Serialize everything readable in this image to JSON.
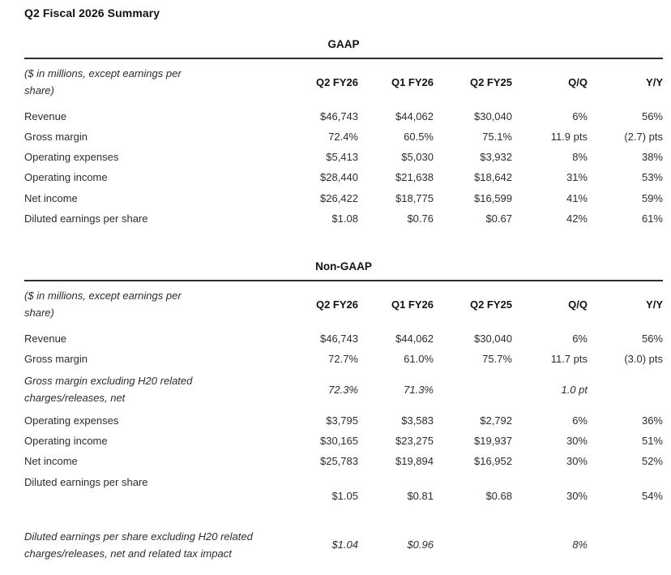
{
  "page": {
    "title": "Q2 Fiscal 2026 Summary"
  },
  "tables": {
    "gaap": {
      "section_label": "GAAP",
      "note": "($ in millions, except earnings per share)",
      "columns": [
        "Q2 FY26",
        "Q1 FY26",
        "Q2 FY25",
        "Q/Q",
        "Y/Y"
      ],
      "rows": [
        {
          "label": "Revenue",
          "values": [
            "$46,743",
            "$44,062",
            "$30,040",
            "6%",
            "56%"
          ]
        },
        {
          "label": "Gross margin",
          "values": [
            "72.4%",
            "60.5%",
            "75.1%",
            "11.9 pts",
            "(2.7) pts"
          ]
        },
        {
          "label": "Operating expenses",
          "values": [
            "$5,413",
            "$5,030",
            "$3,932",
            "8%",
            "38%"
          ]
        },
        {
          "label": "Operating income",
          "values": [
            "$28,440",
            "$21,638",
            "$18,642",
            "31%",
            "53%"
          ]
        },
        {
          "label": "Net income",
          "values": [
            "$26,422",
            "$18,775",
            "$16,599",
            "41%",
            "59%"
          ]
        },
        {
          "label": "Diluted earnings per share",
          "values": [
            "$1.08",
            "$0.76",
            "$0.67",
            "42%",
            "61%"
          ]
        }
      ]
    },
    "non_gaap": {
      "section_label": "Non-GAAP",
      "note": "($ in millions, except earnings per share)",
      "columns": [
        "Q2 FY26",
        "Q1 FY26",
        "Q2 FY25",
        "Q/Q",
        "Y/Y"
      ],
      "rows": [
        {
          "label": "Revenue",
          "values": [
            "$46,743",
            "$44,062",
            "$30,040",
            "6%",
            "56%"
          ]
        },
        {
          "label": "Gross margin",
          "values": [
            "72.7%",
            "61.0%",
            "75.7%",
            "11.7 pts",
            "(3.0) pts"
          ]
        },
        {
          "label": "Gross margin excluding H20 related charges/releases, net",
          "values": [
            "72.3%",
            "71.3%",
            "",
            "1.0 pt",
            ""
          ]
        },
        {
          "label": "Operating expenses",
          "values": [
            "$3,795",
            "$3,583",
            "$2,792",
            "6%",
            "36%"
          ]
        },
        {
          "label": "Operating income",
          "values": [
            "$30,165",
            "$23,275",
            "$19,937",
            "30%",
            "51%"
          ]
        },
        {
          "label": "Net income",
          "values": [
            "$25,783",
            "$19,894",
            "$16,952",
            "30%",
            "52%"
          ]
        },
        {
          "label": "Diluted earnings per share",
          "values": [
            "$1.05",
            "$0.81",
            "$0.68",
            "30%",
            "54%"
          ]
        },
        {
          "label": "Diluted earnings per share excluding H20 related charges/releases, net and related tax impact",
          "values": [
            "$1.04",
            "$0.96",
            "",
            "8%",
            ""
          ]
        }
      ]
    }
  },
  "colors": {
    "text": "#2d2d2d",
    "heading": "#121212",
    "rule": "#2e2e2e",
    "background": "#ffffff"
  }
}
